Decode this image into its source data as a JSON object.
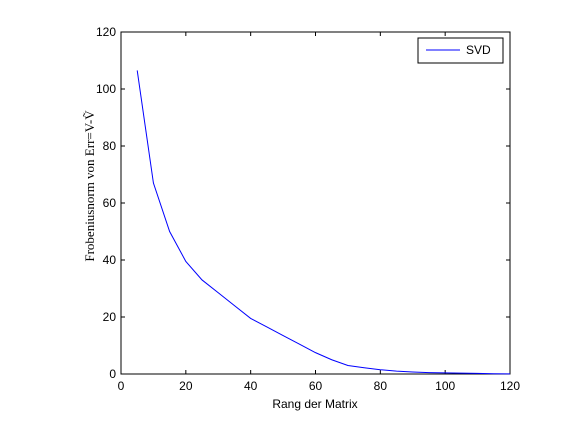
{
  "chart_data": {
    "type": "line",
    "title": "",
    "xlabel": "Rang der Matrix",
    "ylabel": "Frobeniusnorm von Err=V-Ṽ",
    "xlim": [
      0,
      120
    ],
    "ylim": [
      0,
      120
    ],
    "xticks": [
      "0",
      "20",
      "40",
      "60",
      "80",
      "100",
      "120"
    ],
    "yticks": [
      "0",
      "20",
      "40",
      "60",
      "80",
      "100",
      "120"
    ],
    "grid": false,
    "legend_position": "top-right",
    "series": [
      {
        "name": "SVD",
        "color": "#0000ff",
        "x": [
          5,
          10,
          15,
          20,
          25,
          30,
          35,
          40,
          45,
          50,
          55,
          60,
          65,
          70,
          75,
          80,
          85,
          90,
          95,
          100,
          105,
          110,
          115,
          120
        ],
        "y": [
          106.5,
          67,
          50,
          39.5,
          33,
          28.5,
          24,
          19.5,
          16.5,
          13.5,
          10.5,
          7.5,
          5,
          3,
          2.2,
          1.5,
          1,
          0.7,
          0.5,
          0.4,
          0.3,
          0.2,
          0.1,
          0.05
        ]
      }
    ]
  }
}
